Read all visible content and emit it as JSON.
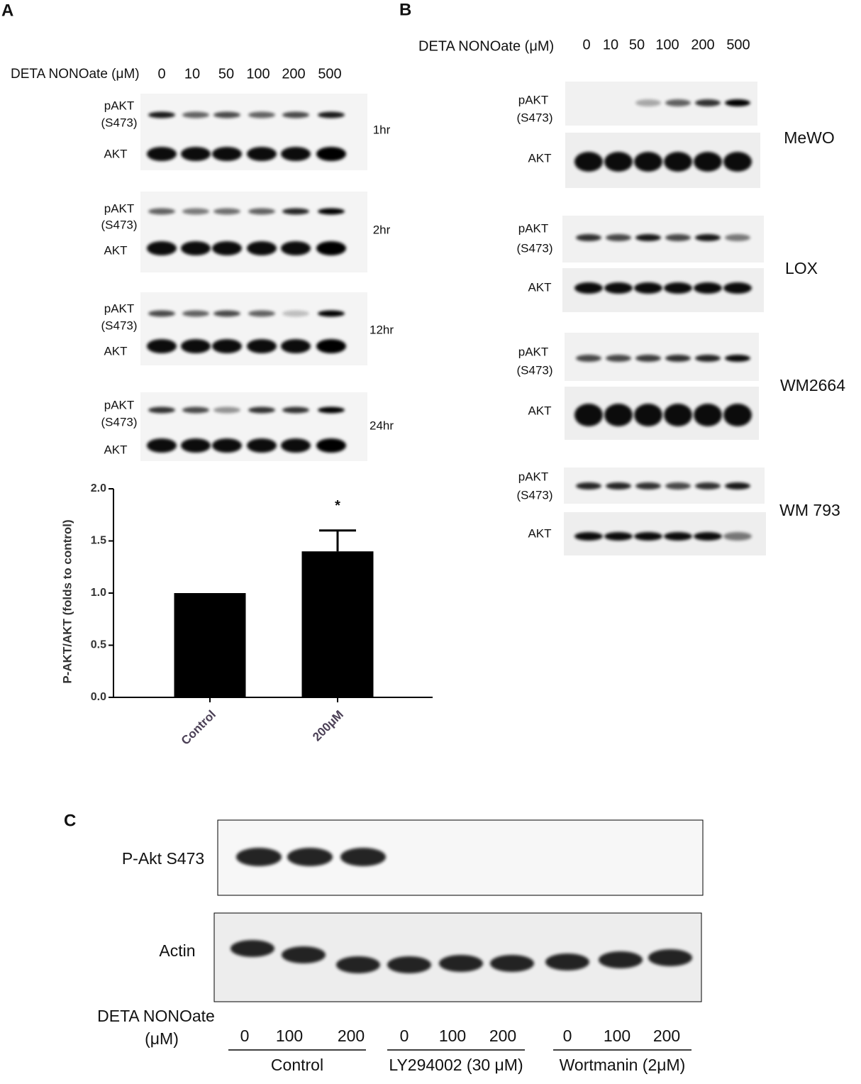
{
  "panel_a": {
    "label": "A",
    "treatment": "DETA NONOate (μM)",
    "doses": [
      "0",
      "10",
      "50",
      "100",
      "200",
      "500"
    ],
    "blots": [
      {
        "time": "1hr",
        "phospho": [
          "pAKT",
          "(S473)"
        ],
        "total": "AKT"
      },
      {
        "time": "2hr",
        "phospho": [
          "pAKT",
          "(S473)"
        ],
        "total": "AKT"
      },
      {
        "time": "12hr",
        "phospho": [
          "pAKT",
          "(S473)"
        ],
        "total": "AKT"
      },
      {
        "time": "24hr",
        "phospho": [
          "pAKT",
          "(S473)"
        ],
        "total": "AKT"
      }
    ]
  },
  "chart_data": {
    "type": "bar",
    "ylabel": "P-AKT/AKT (folds to control)",
    "categories": [
      "Control",
      "200μM"
    ],
    "values": [
      1.0,
      1.4
    ],
    "errors": [
      null,
      0.2
    ],
    "color": "#000000",
    "annotation": "*",
    "ylim": [
      0,
      2
    ],
    "yticks": [
      {
        "value": 0,
        "label": "0.0"
      },
      {
        "value": 0.5,
        "label": "0.5"
      },
      {
        "value": 1,
        "label": "1.0"
      },
      {
        "value": 1.5,
        "label": "1.5"
      },
      {
        "value": 2,
        "label": "2.0"
      }
    ]
  },
  "panel_b": {
    "label": "B",
    "treatment": "DETA NONOate (μM)",
    "doses": [
      "0",
      "10",
      "50",
      "100",
      "200",
      "500"
    ],
    "cell_lines": [
      {
        "name": "MeWO",
        "phospho": [
          "pAKT",
          "(S473)"
        ],
        "total": "AKT"
      },
      {
        "name": "LOX",
        "phospho": [
          "pAKT",
          "(S473)"
        ],
        "total": "AKT"
      },
      {
        "name": "WM2664",
        "phospho": [
          "pAKT",
          "(S473)"
        ],
        "total": "AKT"
      },
      {
        "name": "WM 793",
        "phospho": [
          "pAKT",
          "(S473)"
        ],
        "total": "AKT"
      }
    ]
  },
  "panel_c": {
    "label": "C",
    "rows": [
      "P-Akt S473",
      "Actin"
    ],
    "treatment": [
      "DETA NONOate",
      "(μM)"
    ],
    "conditions": [
      {
        "name": "Control",
        "doses": [
          "0",
          "100",
          "200"
        ]
      },
      {
        "name": "LY294002 (30 μM)",
        "doses": [
          "0",
          "100",
          "200"
        ]
      },
      {
        "name": "Wortmanin (2μM)",
        "doses": [
          "0",
          "100",
          "200"
        ]
      }
    ]
  }
}
